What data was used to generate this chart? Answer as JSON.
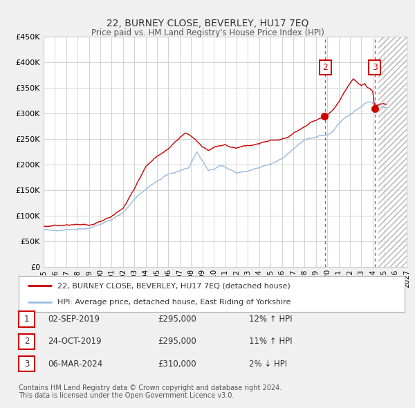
{
  "title": "22, BURNEY CLOSE, BEVERLEY, HU17 7EQ",
  "subtitle": "Price paid vs. HM Land Registry's House Price Index (HPI)",
  "ylim": [
    0,
    450000
  ],
  "xlim_start": 1995,
  "xlim_end": 2027,
  "yticks": [
    0,
    50000,
    100000,
    150000,
    200000,
    250000,
    300000,
    350000,
    400000,
    450000
  ],
  "ytick_labels": [
    "£0",
    "£50K",
    "£100K",
    "£150K",
    "£200K",
    "£250K",
    "£300K",
    "£350K",
    "£400K",
    "£450K"
  ],
  "xticks": [
    1995,
    1996,
    1997,
    1998,
    1999,
    2000,
    2001,
    2002,
    2003,
    2004,
    2005,
    2006,
    2007,
    2008,
    2009,
    2010,
    2011,
    2012,
    2013,
    2014,
    2015,
    2016,
    2017,
    2018,
    2019,
    2020,
    2021,
    2022,
    2023,
    2024,
    2025,
    2026,
    2027
  ],
  "background_color": "#f0f0f0",
  "plot_bg_color": "#ffffff",
  "grid_color": "#cccccc",
  "red_line_color": "#cc0000",
  "blue_line_color": "#99bbdd",
  "vline_color": "#cc3333",
  "sale_marker_color": "#cc0000",
  "hatch_start": 2024.5,
  "transaction_vline_dates": [
    2019.82,
    2024.18
  ],
  "sale_points_marker": [
    {
      "date": 2019.745,
      "value": 295000
    },
    {
      "date": 2024.18,
      "value": 310000
    }
  ],
  "annotation_boxes": [
    {
      "date": 2019.82,
      "value": 390000,
      "label": "2"
    },
    {
      "date": 2024.18,
      "value": 390000,
      "label": "3"
    }
  ],
  "legend_line1": "22, BURNEY CLOSE, BEVERLEY, HU17 7EQ (detached house)",
  "legend_line2": "HPI: Average price, detached house, East Riding of Yorkshire",
  "table_rows": [
    {
      "num": "1",
      "date": "02-SEP-2019",
      "price": "£295,000",
      "hpi": "12% ↑ HPI"
    },
    {
      "num": "2",
      "date": "24-OCT-2019",
      "price": "£295,000",
      "hpi": "11% ↑ HPI"
    },
    {
      "num": "3",
      "date": "06-MAR-2024",
      "price": "£310,000",
      "hpi": "2% ↓ HPI"
    }
  ],
  "footnote": "Contains HM Land Registry data © Crown copyright and database right 2024.\nThis data is licensed under the Open Government Licence v3.0."
}
